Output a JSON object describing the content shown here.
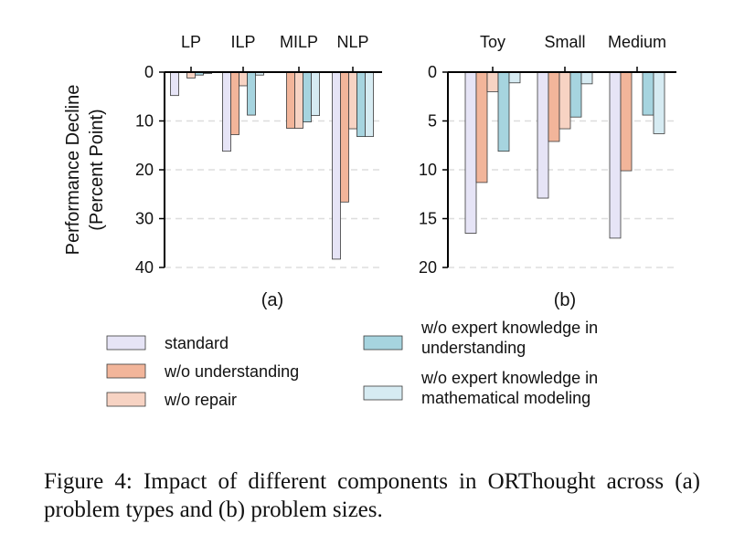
{
  "chart_data": [
    {
      "type": "bar",
      "panel_label": "(a)",
      "ylabel_lines": [
        "Performance Decline",
        "(Percent Point)"
      ],
      "ylim": [
        0,
        40
      ],
      "yticks": [
        "0",
        "10",
        "20",
        "30",
        "40"
      ],
      "y_inverted": true,
      "x_axis_position": "top",
      "grid": "horizontal dashed",
      "categories": [
        "LP",
        "ILP",
        "MILP",
        "NLP"
      ],
      "series": [
        {
          "name": "standard",
          "values": [
            4.8,
            16.2,
            0,
            38.3
          ]
        },
        {
          "name": "w/o understanding",
          "values": [
            0,
            12.8,
            11.5,
            26.6
          ]
        },
        {
          "name": "w/o repair",
          "values": [
            1.2,
            2.8,
            11.5,
            11.6
          ]
        },
        {
          "name": "w/o expert knowledge in understanding",
          "values": [
            0.6,
            8.8,
            10.2,
            13.2
          ]
        },
        {
          "name": "w/o expert knowledge in mathematical modeling",
          "values": [
            0.3,
            0.6,
            8.9,
            13.2
          ]
        }
      ]
    },
    {
      "type": "bar",
      "panel_label": "(b)",
      "ylim": [
        0,
        20
      ],
      "yticks": [
        "0",
        "5",
        "10",
        "15",
        "20"
      ],
      "y_inverted": true,
      "x_axis_position": "top",
      "grid": "horizontal dashed",
      "categories": [
        "Toy",
        "Small",
        "Medium"
      ],
      "series": [
        {
          "name": "standard",
          "values": [
            16.5,
            12.9,
            17.0
          ]
        },
        {
          "name": "w/o understanding",
          "values": [
            11.3,
            7.1,
            10.1
          ]
        },
        {
          "name": "w/o repair",
          "values": [
            2.0,
            5.8,
            0
          ]
        },
        {
          "name": "w/o expert knowledge in understanding",
          "values": [
            8.1,
            4.6,
            4.4
          ]
        },
        {
          "name": "w/o expert knowledge in mathematical modeling",
          "values": [
            1.1,
            1.2,
            6.3
          ]
        }
      ]
    }
  ],
  "legend": {
    "items": [
      {
        "label": "standard",
        "color": "#e6e4f6"
      },
      {
        "label": "w/o understanding",
        "color": "#f2b59a"
      },
      {
        "label": "w/o repair",
        "color": "#f7d3c3"
      },
      {
        "label": "w/o expert knowledge in understanding",
        "color": "#a6d4df"
      },
      {
        "label": "w/o expert knowledge in mathematical modeling",
        "color": "#d6ebf2"
      }
    ],
    "placement": "bottom, two columns"
  },
  "colors": {
    "standard": "#e6e4f6",
    "wo_understanding": "#f2b59a",
    "wo_repair": "#f7d3c3",
    "wo_expert_understanding": "#a6d4df",
    "wo_expert_modeling": "#d6ebf2",
    "bar_edge": "#3a3a3a",
    "grid": "#dddddd"
  },
  "caption": "Figure 4: Impact of different components in ORThought across (a) problem types and (b) problem sizes."
}
